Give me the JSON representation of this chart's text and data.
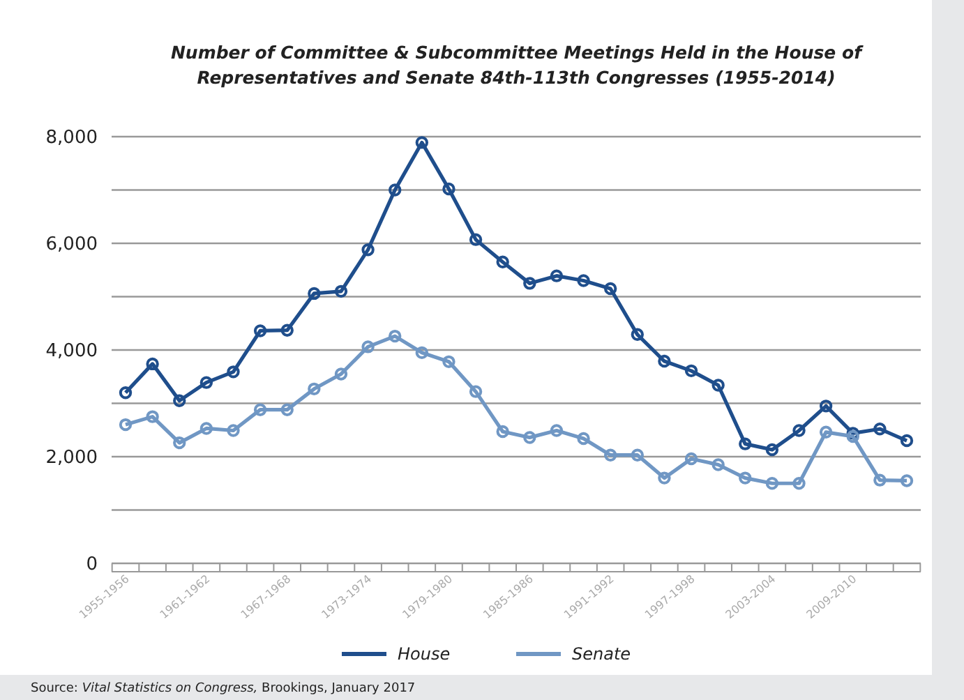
{
  "chart_data": {
    "type": "line",
    "title": "Number of Committee & Subcommittee Meetings Held in the House of Representatives and Senate 84th-113th Congresses (1955-2014)",
    "categories": [
      "1955-1956",
      null,
      null,
      "1961-1962",
      null,
      null,
      "1967-1968",
      null,
      null,
      "1973-1974",
      null,
      null,
      "1979-1980",
      null,
      null,
      "1985-1986",
      null,
      null,
      "1991-1992",
      null,
      null,
      "1997-1998",
      null,
      null,
      "2003-2004",
      null,
      null,
      "2009-2010",
      null,
      null
    ],
    "series": [
      {
        "name": "House",
        "color": "#1f4e8c",
        "values": [
          3200,
          3740,
          3050,
          3390,
          3590,
          4360,
          4370,
          5060,
          5100,
          5880,
          7000,
          7890,
          7020,
          6070,
          5650,
          5250,
          5390,
          5300,
          5150,
          4290,
          3790,
          3610,
          3340,
          2240,
          2130,
          2490,
          2950,
          2440,
          2520,
          2300
        ]
      },
      {
        "name": "Senate",
        "color": "#7097c4",
        "values": [
          2600,
          2750,
          2260,
          2530,
          2490,
          2880,
          2880,
          3270,
          3550,
          4060,
          4260,
          3950,
          3780,
          3220,
          2470,
          2360,
          2490,
          2340,
          2030,
          2030,
          1600,
          1960,
          1850,
          1600,
          1500,
          1500,
          2460,
          2380,
          1560,
          1550
        ]
      }
    ],
    "ylim": [
      0,
      8000
    ],
    "yticks": [
      0,
      {
        "value": 1000,
        "label": null
      },
      {
        "value": 2000,
        "label": "2,000"
      },
      {
        "value": 3000,
        "label": null
      },
      {
        "value": 4000,
        "label": "4,000"
      },
      {
        "value": 5000,
        "label": null
      },
      {
        "value": 6000,
        "label": "6,000"
      },
      {
        "value": 7000,
        "label": null
      },
      {
        "value": 8000,
        "label": "8,000"
      }
    ],
    "grid": "y",
    "legend": "bottom",
    "marker": "circle",
    "line_style": "solid",
    "annotations": [
      "Source: $_{}$Vital Statistics on Congress, Brookings, January 2017"
    ]
  }
}
